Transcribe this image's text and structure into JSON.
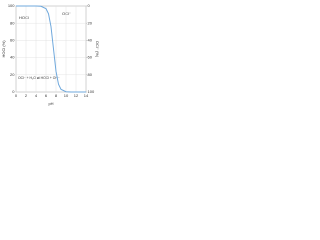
{
  "chart_data": {
    "type": "line",
    "ylabel": "HOCl (%)",
    "y2label": "OCl⁻ (%)",
    "xlabel": "pH",
    "annotations": [
      "HOCl",
      "OCl⁻",
      "OCl⁻ + H₂O ⇌ HOCl + OH⁻"
    ],
    "x": [
      0,
      1,
      2,
      3,
      4,
      5,
      6,
      6.5,
      7,
      7.5,
      8,
      8.5,
      9,
      10,
      11,
      12,
      13,
      14
    ],
    "series": [
      {
        "name": "HOCl",
        "color": "#6fa8dc",
        "values": [
          100,
          100,
          100,
          100,
          100,
          99.7,
          96.9,
          90.9,
          76,
          50,
          24,
          9.1,
          3.1,
          0.3,
          0,
          0,
          0,
          0
        ]
      }
    ],
    "xlim": [
      0,
      14
    ],
    "xticks": [
      0,
      2,
      4,
      6,
      8,
      10,
      12,
      14
    ],
    "ylim": [
      0,
      100
    ],
    "yticks": [
      0,
      20,
      40,
      60,
      80,
      100
    ],
    "y2lim": [
      100,
      0
    ],
    "y2ticks": [
      100,
      80,
      60,
      40,
      20,
      0
    ],
    "grid": true
  }
}
